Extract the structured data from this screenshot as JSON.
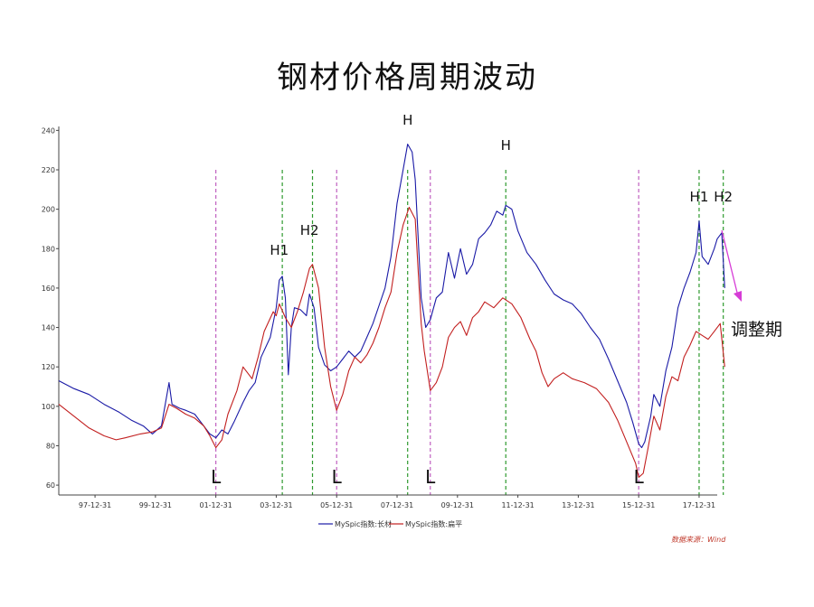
{
  "title": "钢材价格周期波动",
  "note": "调整期",
  "source": "数据来源：Wind",
  "chart_data": {
    "type": "line",
    "title": "钢材价格周期波动",
    "xlabel": "",
    "ylabel": "",
    "ylim": [
      55,
      242
    ],
    "xlim": [
      1996.8,
      2018.6
    ],
    "grid": false,
    "legend_position": "bottom",
    "yticks": [
      60,
      80,
      100,
      120,
      140,
      160,
      180,
      200,
      220,
      240
    ],
    "xticks": [
      {
        "x": 1998.0,
        "label": "97-12-31"
      },
      {
        "x": 2000.0,
        "label": "99-12-31"
      },
      {
        "x": 2002.0,
        "label": "01-12-31"
      },
      {
        "x": 2004.0,
        "label": "03-12-31"
      },
      {
        "x": 2006.0,
        "label": "05-12-31"
      },
      {
        "x": 2008.0,
        "label": "07-12-31"
      },
      {
        "x": 2010.0,
        "label": "09-12-31"
      },
      {
        "x": 2012.0,
        "label": "11-12-31"
      },
      {
        "x": 2014.0,
        "label": "13-12-31"
      },
      {
        "x": 2016.0,
        "label": "15-12-31"
      },
      {
        "x": 2018.0,
        "label": "17-12-31"
      }
    ],
    "series": [
      {
        "name": "MySpic指数:长材",
        "color": "#1a1aa6",
        "points": [
          [
            1996.8,
            113
          ],
          [
            1997.3,
            109
          ],
          [
            1997.8,
            106
          ],
          [
            1998.3,
            101
          ],
          [
            1998.8,
            97
          ],
          [
            1999.2,
            93
          ],
          [
            1999.6,
            90
          ],
          [
            1999.9,
            86
          ],
          [
            2000.2,
            90
          ],
          [
            2000.45,
            112
          ],
          [
            2000.55,
            101
          ],
          [
            2000.8,
            99
          ],
          [
            2001.0,
            98
          ],
          [
            2001.3,
            96
          ],
          [
            2001.6,
            90
          ],
          [
            2001.8,
            86
          ],
          [
            2002.0,
            84
          ],
          [
            2002.2,
            88
          ],
          [
            2002.4,
            86
          ],
          [
            2002.6,
            92
          ],
          [
            2002.9,
            102
          ],
          [
            2003.1,
            108
          ],
          [
            2003.3,
            112
          ],
          [
            2003.5,
            125
          ],
          [
            2003.8,
            135
          ],
          [
            2004.0,
            150
          ],
          [
            2004.1,
            164
          ],
          [
            2004.2,
            166
          ],
          [
            2004.3,
            155
          ],
          [
            2004.4,
            116
          ],
          [
            2004.5,
            140
          ],
          [
            2004.6,
            150
          ],
          [
            2004.8,
            149
          ],
          [
            2005.0,
            146
          ],
          [
            2005.1,
            157
          ],
          [
            2005.25,
            150
          ],
          [
            2005.4,
            130
          ],
          [
            2005.6,
            121
          ],
          [
            2005.8,
            118
          ],
          [
            2006.0,
            120
          ],
          [
            2006.2,
            124
          ],
          [
            2006.4,
            128
          ],
          [
            2006.6,
            125
          ],
          [
            2006.8,
            128
          ],
          [
            2007.0,
            135
          ],
          [
            2007.2,
            142
          ],
          [
            2007.4,
            151
          ],
          [
            2007.6,
            160
          ],
          [
            2007.8,
            176
          ],
          [
            2008.0,
            203
          ],
          [
            2008.2,
            220
          ],
          [
            2008.35,
            233
          ],
          [
            2008.5,
            229
          ],
          [
            2008.6,
            215
          ],
          [
            2008.7,
            185
          ],
          [
            2008.8,
            155
          ],
          [
            2008.95,
            140
          ],
          [
            2009.1,
            144
          ],
          [
            2009.3,
            155
          ],
          [
            2009.5,
            158
          ],
          [
            2009.7,
            178
          ],
          [
            2009.9,
            165
          ],
          [
            2010.1,
            180
          ],
          [
            2010.3,
            167
          ],
          [
            2010.5,
            172
          ],
          [
            2010.7,
            185
          ],
          [
            2010.9,
            188
          ],
          [
            2011.1,
            192
          ],
          [
            2011.3,
            199
          ],
          [
            2011.5,
            197
          ],
          [
            2011.6,
            202
          ],
          [
            2011.8,
            200
          ],
          [
            2012.0,
            189
          ],
          [
            2012.3,
            178
          ],
          [
            2012.6,
            172
          ],
          [
            2012.9,
            164
          ],
          [
            2013.2,
            157
          ],
          [
            2013.5,
            154
          ],
          [
            2013.8,
            152
          ],
          [
            2014.1,
            147
          ],
          [
            2014.4,
            140
          ],
          [
            2014.7,
            134
          ],
          [
            2015.0,
            124
          ],
          [
            2015.3,
            113
          ],
          [
            2015.6,
            102
          ],
          [
            2015.8,
            92
          ],
          [
            2016.0,
            81
          ],
          [
            2016.1,
            79
          ],
          [
            2016.2,
            82
          ],
          [
            2016.4,
            95
          ],
          [
            2016.5,
            106
          ],
          [
            2016.7,
            100
          ],
          [
            2016.9,
            118
          ],
          [
            2017.1,
            130
          ],
          [
            2017.3,
            150
          ],
          [
            2017.5,
            160
          ],
          [
            2017.7,
            168
          ],
          [
            2017.9,
            178
          ],
          [
            2018.0,
            194
          ],
          [
            2018.1,
            176
          ],
          [
            2018.3,
            172
          ],
          [
            2018.5,
            180
          ],
          [
            2018.6,
            185
          ],
          [
            2018.75,
            188
          ],
          [
            2018.85,
            160
          ]
        ]
      },
      {
        "name": "MySpic指数:扁平",
        "color": "#c21f1f",
        "points": [
          [
            1996.8,
            101
          ],
          [
            1997.3,
            95
          ],
          [
            1997.8,
            89
          ],
          [
            1998.3,
            85
          ],
          [
            1998.7,
            83
          ],
          [
            1999.0,
            84
          ],
          [
            1999.5,
            86
          ],
          [
            1999.9,
            87
          ],
          [
            2000.2,
            89
          ],
          [
            2000.45,
            101
          ],
          [
            2000.7,
            99
          ],
          [
            2001.0,
            96
          ],
          [
            2001.3,
            94
          ],
          [
            2001.6,
            90
          ],
          [
            2001.8,
            85
          ],
          [
            2002.0,
            79
          ],
          [
            2002.2,
            83
          ],
          [
            2002.4,
            96
          ],
          [
            2002.7,
            108
          ],
          [
            2002.9,
            120
          ],
          [
            2003.2,
            114
          ],
          [
            2003.4,
            125
          ],
          [
            2003.6,
            138
          ],
          [
            2003.9,
            148
          ],
          [
            2004.0,
            146
          ],
          [
            2004.1,
            152
          ],
          [
            2004.3,
            145
          ],
          [
            2004.5,
            140
          ],
          [
            2004.7,
            148
          ],
          [
            2004.9,
            158
          ],
          [
            2005.1,
            170
          ],
          [
            2005.2,
            172
          ],
          [
            2005.4,
            160
          ],
          [
            2005.6,
            130
          ],
          [
            2005.8,
            110
          ],
          [
            2006.0,
            98
          ],
          [
            2006.2,
            106
          ],
          [
            2006.4,
            118
          ],
          [
            2006.6,
            125
          ],
          [
            2006.8,
            122
          ],
          [
            2007.0,
            126
          ],
          [
            2007.2,
            132
          ],
          [
            2007.4,
            140
          ],
          [
            2007.6,
            150
          ],
          [
            2007.8,
            158
          ],
          [
            2008.0,
            178
          ],
          [
            2008.2,
            192
          ],
          [
            2008.4,
            201
          ],
          [
            2008.6,
            195
          ],
          [
            2008.8,
            142
          ],
          [
            2008.9,
            128
          ],
          [
            2009.1,
            108
          ],
          [
            2009.3,
            112
          ],
          [
            2009.5,
            120
          ],
          [
            2009.7,
            135
          ],
          [
            2009.9,
            140
          ],
          [
            2010.1,
            143
          ],
          [
            2010.3,
            136
          ],
          [
            2010.5,
            145
          ],
          [
            2010.7,
            148
          ],
          [
            2010.9,
            153
          ],
          [
            2011.2,
            150
          ],
          [
            2011.5,
            155
          ],
          [
            2011.8,
            152
          ],
          [
            2012.1,
            145
          ],
          [
            2012.4,
            134
          ],
          [
            2012.6,
            128
          ],
          [
            2012.8,
            117
          ],
          [
            2013.0,
            110
          ],
          [
            2013.2,
            114
          ],
          [
            2013.5,
            117
          ],
          [
            2013.8,
            114
          ],
          [
            2014.2,
            112
          ],
          [
            2014.6,
            109
          ],
          [
            2015.0,
            102
          ],
          [
            2015.3,
            93
          ],
          [
            2015.6,
            82
          ],
          [
            2015.9,
            71
          ],
          [
            2016.0,
            64
          ],
          [
            2016.15,
            66
          ],
          [
            2016.3,
            78
          ],
          [
            2016.5,
            95
          ],
          [
            2016.7,
            88
          ],
          [
            2016.9,
            105
          ],
          [
            2017.1,
            115
          ],
          [
            2017.3,
            113
          ],
          [
            2017.5,
            125
          ],
          [
            2017.7,
            131
          ],
          [
            2017.9,
            138
          ],
          [
            2018.1,
            136
          ],
          [
            2018.3,
            134
          ],
          [
            2018.5,
            138
          ],
          [
            2018.7,
            142
          ],
          [
            2018.85,
            120
          ]
        ]
      }
    ],
    "vlines": [
      {
        "x": 2002.0,
        "color": "#c060c0"
      },
      {
        "x": 2004.2,
        "color": "#2e9a2e"
      },
      {
        "x": 2005.2,
        "color": "#2e9a2e"
      },
      {
        "x": 2006.0,
        "color": "#c060c0"
      },
      {
        "x": 2008.35,
        "color": "#2e9a2e"
      },
      {
        "x": 2009.1,
        "color": "#c060c0"
      },
      {
        "x": 2011.6,
        "color": "#2e9a2e"
      },
      {
        "x": 2016.0,
        "color": "#c060c0"
      },
      {
        "x": 2018.0,
        "color": "#2e9a2e"
      },
      {
        "x": 2018.8,
        "color": "#2e9a2e"
      }
    ],
    "annotations": [
      {
        "text": "L",
        "x": 2002.0,
        "y": 61,
        "kind": "low"
      },
      {
        "text": "L",
        "x": 2006.0,
        "y": 61,
        "kind": "low"
      },
      {
        "text": "L",
        "x": 2009.1,
        "y": 61,
        "kind": "low"
      },
      {
        "text": "L",
        "x": 2016.0,
        "y": 61,
        "kind": "low"
      },
      {
        "text": "H1",
        "x": 2004.1,
        "y": 177,
        "kind": "high"
      },
      {
        "text": "H2",
        "x": 2005.1,
        "y": 187,
        "kind": "high"
      },
      {
        "text": "H",
        "x": 2008.35,
        "y": 243,
        "kind": "high"
      },
      {
        "text": "H",
        "x": 2011.6,
        "y": 230,
        "kind": "high"
      },
      {
        "text": "H1",
        "x": 2018.0,
        "y": 204,
        "kind": "high"
      },
      {
        "text": "H2",
        "x": 2018.8,
        "y": 204,
        "kind": "high"
      }
    ]
  }
}
